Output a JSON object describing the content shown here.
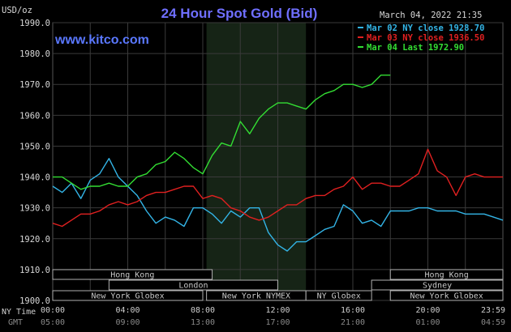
{
  "header": {
    "units": "USD/oz",
    "title": "24 Hour Spot Gold (Bid)",
    "datetime": "March 04, 2022 21:35",
    "site": "www.kitco.com"
  },
  "time_labels": {
    "ny_time_label": "NY Time",
    "gmt_label": "GMT",
    "ny": [
      "00:00",
      "04:00",
      "08:00",
      "12:00",
      "16:00",
      "20:00",
      "23:59"
    ],
    "gmt": [
      "05:00",
      "09:00",
      "13:00",
      "17:00",
      "21:00",
      "01:00",
      "04:59"
    ]
  },
  "sessions": {
    "row1": [
      {
        "label": "Hong Kong",
        "start": 0,
        "end": 8.5
      },
      {
        "label": "Hong Kong",
        "start": 18,
        "end": 24
      }
    ],
    "row2": [
      {
        "label": "London",
        "start": 3,
        "end": 12
      },
      {
        "label": "Sydney",
        "start": 17,
        "end": 24
      }
    ],
    "row3": [
      {
        "label": "New York Globex",
        "start": 0,
        "end": 8
      },
      {
        "label": "New York NYMEX",
        "start": 8.2,
        "end": 13.5
      },
      {
        "label": "NY Globex",
        "start": 13.5,
        "end": 17
      },
      {
        "label": "New York Globex",
        "start": 18,
        "end": 24
      }
    ]
  },
  "colors": {
    "series_blue": "#33b4e6",
    "series_red": "#e02020",
    "series_green": "#33dd33",
    "grid": "#3a3a3a",
    "shade": "#162416",
    "title": "#6f6fff",
    "site": "#5a78ff"
  },
  "chart_data": {
    "type": "line",
    "title": "24 Hour Spot Gold (Bid)",
    "ylabel": "USD/oz",
    "xlabel": "NY Time",
    "ylim": [
      1900,
      1990
    ],
    "yticks": [
      "1990.0",
      "1980.0",
      "1970.0",
      "1960.0",
      "1950.0",
      "1940.0",
      "1930.0",
      "1920.0",
      "1910.0",
      "1900.0"
    ],
    "xlim_hours": [
      0,
      24
    ],
    "shaded_hours": [
      8.2,
      13.5
    ],
    "grid": true,
    "legend_position": "top-right",
    "series": [
      {
        "name": "Mar 02 NY close 1928.70",
        "color": "#33b4e6",
        "x": [
          0,
          0.5,
          1,
          1.5,
          2,
          2.5,
          3,
          3.5,
          4,
          4.5,
          5,
          5.5,
          6,
          6.5,
          7,
          7.5,
          8,
          8.5,
          9,
          9.5,
          10,
          10.5,
          11,
          11.5,
          12,
          12.5,
          13,
          13.5,
          14,
          14.5,
          15,
          15.5,
          16,
          16.5,
          17,
          17.5,
          18,
          18.5,
          19,
          19.5,
          20,
          20.5,
          21,
          21.5,
          22,
          22.5,
          23,
          23.5,
          24
        ],
        "y": [
          1937,
          1935,
          1938,
          1933,
          1939,
          1941,
          1946,
          1940,
          1937,
          1934,
          1929,
          1925,
          1927,
          1926,
          1924,
          1930,
          1930,
          1928,
          1925,
          1929,
          1927,
          1930,
          1930,
          1922,
          1918,
          1916,
          1919,
          1919,
          1921,
          1923,
          1924,
          1931,
          1929,
          1925,
          1926,
          1924,
          1929,
          1929,
          1929,
          1930,
          1930,
          1929,
          1929,
          1929,
          1928,
          1928,
          1928,
          1927,
          1926
        ]
      },
      {
        "name": "Mar 03 NY close 1936.50",
        "color": "#e02020",
        "x": [
          0,
          0.5,
          1,
          1.5,
          2,
          2.5,
          3,
          3.5,
          4,
          4.5,
          5,
          5.5,
          6,
          6.5,
          7,
          7.5,
          8,
          8.5,
          9,
          9.5,
          10,
          10.5,
          11,
          11.5,
          12,
          12.5,
          13,
          13.5,
          14,
          14.5,
          15,
          15.5,
          16,
          16.5,
          17,
          17.5,
          18,
          18.5,
          19,
          19.5,
          20,
          20.5,
          21,
          21.5,
          22,
          22.5,
          23,
          23.5,
          24
        ],
        "y": [
          1925,
          1924,
          1926,
          1928,
          1928,
          1929,
          1931,
          1932,
          1931,
          1932,
          1934,
          1935,
          1935,
          1936,
          1937,
          1937,
          1933,
          1934,
          1933,
          1930,
          1929,
          1927,
          1926,
          1927,
          1929,
          1931,
          1931,
          1933,
          1934,
          1934,
          1936,
          1937,
          1940,
          1936,
          1938,
          1938,
          1937,
          1937,
          1939,
          1941,
          1949,
          1942,
          1940,
          1934,
          1940,
          1941,
          1940,
          1940,
          1940
        ]
      },
      {
        "name": "Mar 04 Last 1972.90",
        "color": "#33dd33",
        "x": [
          0,
          0.5,
          1,
          1.5,
          2,
          2.5,
          3,
          3.5,
          4,
          4.5,
          5,
          5.5,
          6,
          6.5,
          7,
          7.5,
          8,
          8.5,
          9,
          9.5,
          10,
          10.5,
          11,
          11.5,
          12,
          12.5,
          13,
          13.5,
          14,
          14.5,
          15,
          15.5,
          16,
          16.5,
          17,
          17.5,
          18
        ],
        "y": [
          1940,
          1940,
          1938,
          1936,
          1937,
          1937,
          1938,
          1937,
          1937,
          1940,
          1941,
          1944,
          1945,
          1948,
          1946,
          1943,
          1941,
          1947,
          1951,
          1950,
          1958,
          1954,
          1959,
          1962,
          1964,
          1964,
          1963,
          1962,
          1965,
          1967,
          1968,
          1970,
          1970,
          1969,
          1970,
          1973,
          1973
        ]
      }
    ]
  }
}
